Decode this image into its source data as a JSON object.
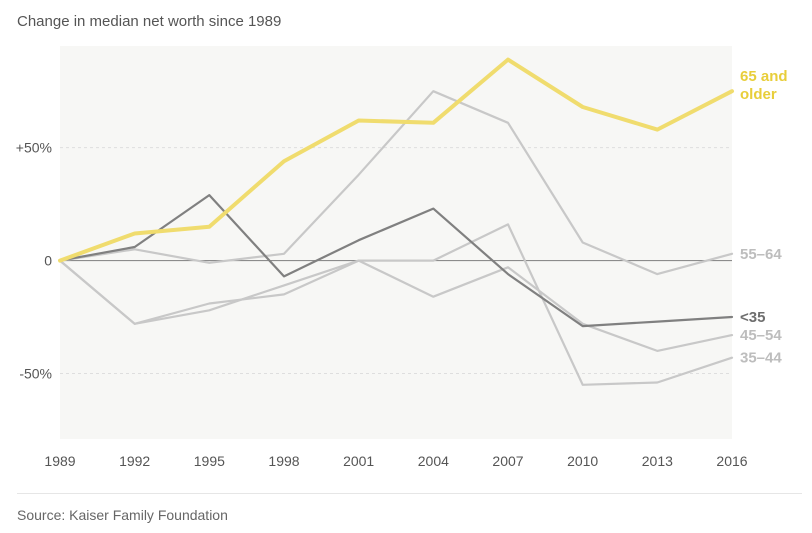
{
  "chart_data": {
    "type": "line",
    "title": "Change in median net worth since 1989",
    "source": "Source: Kaiser Family Foundation",
    "x": [
      "1989",
      "1992",
      "1995",
      "1998",
      "2001",
      "2004",
      "2007",
      "2010",
      "2013",
      "2016"
    ],
    "y_ticks": [
      {
        "value": 50,
        "label": "+50%"
      },
      {
        "value": 0,
        "label": "0"
      },
      {
        "value": -50,
        "label": "-50%"
      }
    ],
    "ylim": [
      -79,
      95
    ],
    "grid": true,
    "series": [
      {
        "name": "55–64",
        "color": "#c8c8c8",
        "label_lines": [
          "55–64"
        ],
        "values": [
          0,
          5,
          -1,
          3,
          38,
          75,
          61,
          8,
          -6,
          3
        ]
      },
      {
        "name": "45–54",
        "color": "#c8c8c8",
        "label_lines": [
          "45–54"
        ],
        "values": [
          0,
          -28,
          -19,
          -15,
          0,
          -16,
          -3,
          -28,
          -40,
          -33
        ]
      },
      {
        "name": "35–44",
        "color": "#c8c8c8",
        "label_lines": [
          "35–44"
        ],
        "values": [
          0,
          -28,
          -22,
          -11,
          0,
          0,
          16,
          -55,
          -54,
          -43
        ]
      },
      {
        "name": "<35",
        "color": "#808080",
        "label_lines": [
          "<35"
        ],
        "values": [
          0,
          6,
          29,
          -7,
          9,
          23,
          -6,
          -29,
          -27,
          -25
        ]
      },
      {
        "name": "65 and older",
        "color": "#f0dc6e",
        "label_lines": [
          "65 and",
          "older"
        ],
        "values": [
          0,
          12,
          15,
          44,
          62,
          61,
          89,
          68,
          58,
          75
        ]
      }
    ]
  }
}
